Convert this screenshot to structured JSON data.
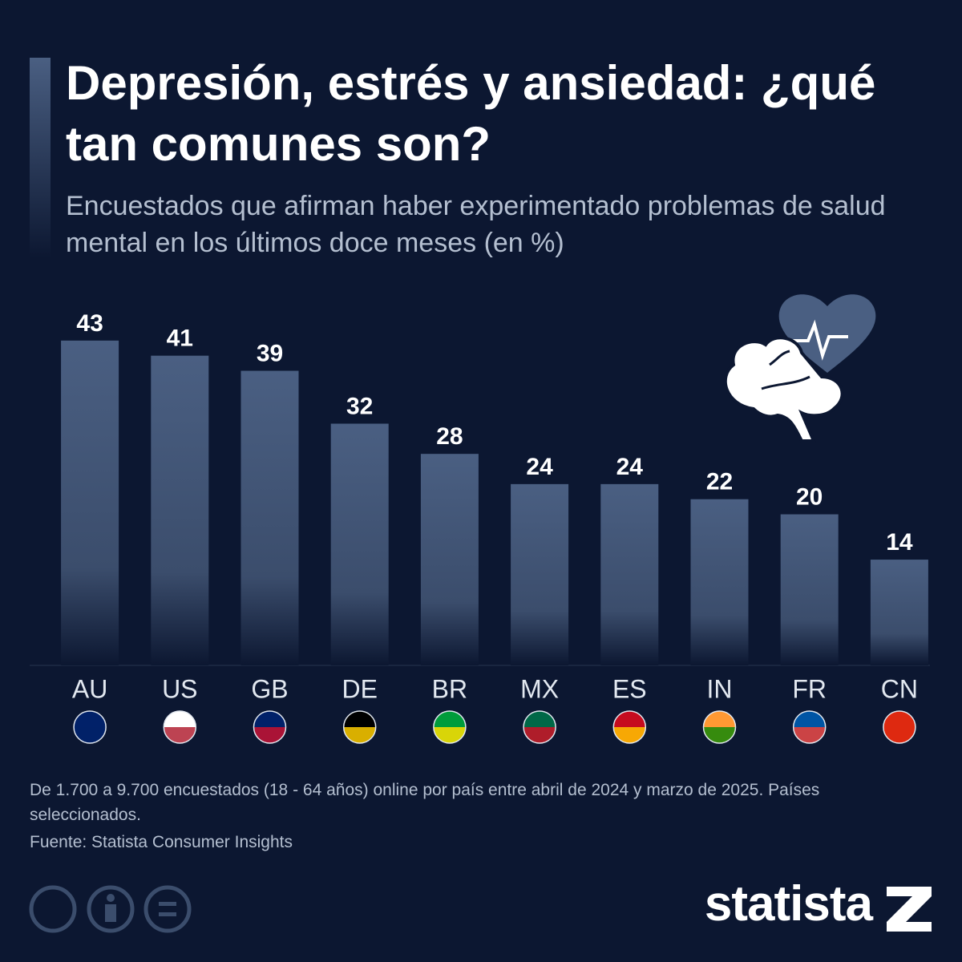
{
  "chart_data": {
    "type": "bar",
    "title": "Depresión, estrés y ansiedad: ¿qué tan comunes son?",
    "subtitle": "Encuestados que afirman haber experimentado problemas de salud mental en los últimos doce meses (en %)",
    "categories": [
      "AU",
      "US",
      "GB",
      "DE",
      "BR",
      "MX",
      "ES",
      "IN",
      "FR",
      "CN"
    ],
    "values": [
      43,
      41,
      39,
      32,
      28,
      24,
      24,
      22,
      20,
      14
    ],
    "color": "#4a5f82",
    "ylim": [
      0,
      45
    ],
    "note": "De 1.700 a 9.700 encuestados (18 - 64 años) online por país entre abril de 2024 y marzo de 2025. Países seleccionados.",
    "source": "Fuente: Statista Consumer Insights",
    "brand": "statista"
  }
}
